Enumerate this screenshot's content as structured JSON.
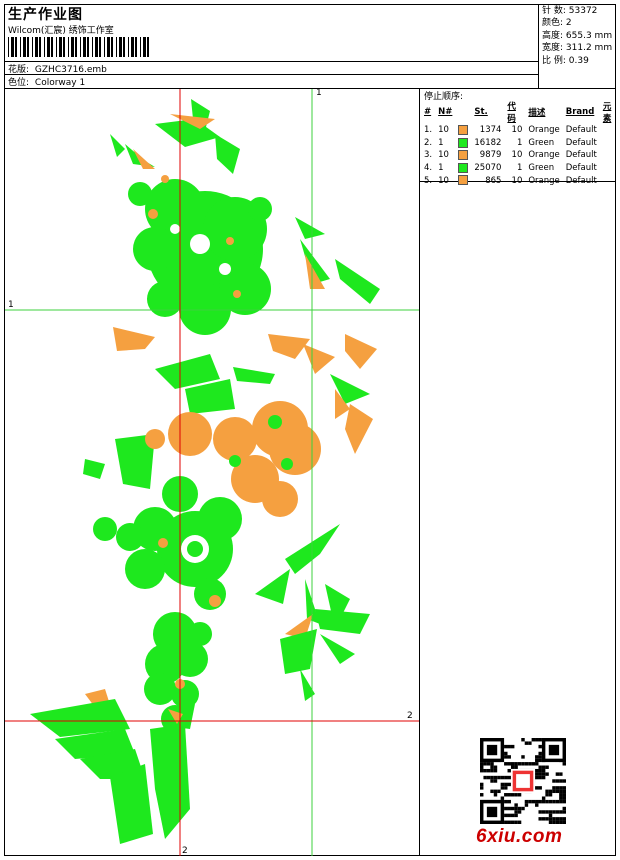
{
  "header": {
    "title": "生产作业图",
    "subtitle": "Wilcom(汇宸) 绣饰工作室",
    "pattern_label": "花版:",
    "pattern_value": "GZHC3716.emb",
    "colorway_label": "色位:",
    "colorway_value": "Colorway 1"
  },
  "stats": [
    {
      "label": "针 数:",
      "value": "53372"
    },
    {
      "label": "颜色:",
      "value": "2"
    },
    {
      "label": "高度:",
      "value": "655.3 mm"
    },
    {
      "label": "宽度:",
      "value": "311.2 mm"
    },
    {
      "label": "比 例:",
      "value": "0.39"
    }
  ],
  "stops": {
    "title": "停止顺序:",
    "headers": [
      "#",
      "N#",
      "",
      "St.",
      "代码",
      "描述",
      "Brand",
      "元素"
    ],
    "rows": [
      {
        "idx": "1.",
        "n": "10",
        "color": "#f5a040",
        "st": "1374",
        "code": "10",
        "desc": "Orange",
        "brand": "Default"
      },
      {
        "idx": "2.",
        "n": "1",
        "color": "#1ee81e",
        "st": "16182",
        "code": "1",
        "desc": "Green",
        "brand": "Default"
      },
      {
        "idx": "3.",
        "n": "10",
        "color": "#f5a040",
        "st": "9879",
        "code": "10",
        "desc": "Orange",
        "brand": "Default"
      },
      {
        "idx": "4.",
        "n": "1",
        "color": "#1ee81e",
        "st": "25070",
        "code": "1",
        "desc": "Green",
        "brand": "Default"
      },
      {
        "idx": "5.",
        "n": "10",
        "color": "#f5a040",
        "st": "865",
        "code": "10",
        "desc": "Orange",
        "brand": "Default"
      }
    ]
  },
  "guides": {
    "green_label_top": "1",
    "green_label_left": "1",
    "red_label_right": "2",
    "red_label_bottom": "2"
  },
  "colors": {
    "green": "#1ee81e",
    "orange": "#f5a040",
    "guide_red": "#e00000",
    "guide_green": "#3cd23c"
  },
  "watermark": {
    "site": "6xiu.com",
    "qr_icon": "qr-code-icon"
  }
}
